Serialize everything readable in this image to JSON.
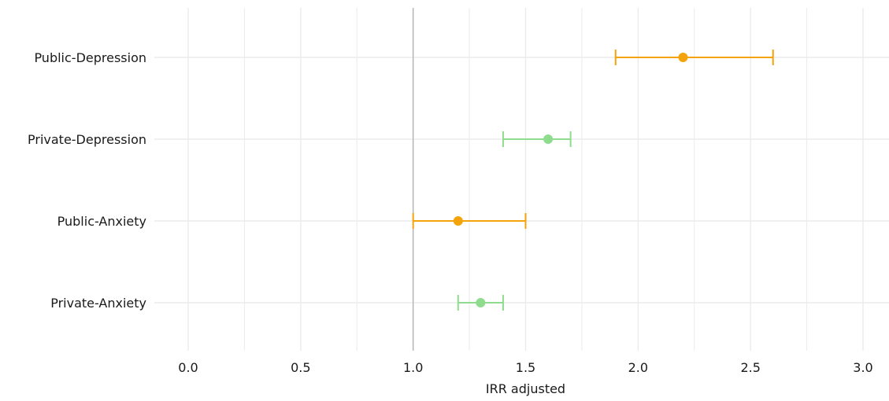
{
  "chart_data": {
    "type": "scatter",
    "subtype": "forest-plot",
    "title": "",
    "xlabel": "IRR adjusted",
    "ylabel": "",
    "xlim": [
      -0.1,
      3.1
    ],
    "xticks": [
      "0.0",
      "0.5",
      "1.0",
      "1.5",
      "2.0",
      "2.5",
      "3.0"
    ],
    "reference_line": 1.0,
    "grid": true,
    "legend": "none",
    "colors": {
      "public": "#F5A30A",
      "private": "#8FDC8F",
      "grid": "#EBEBEB",
      "reference": "#A9A9A9"
    },
    "rows": [
      {
        "label": "Public-Depression",
        "estimate": 2.2,
        "lower": 1.9,
        "upper": 2.6,
        "group": "public"
      },
      {
        "label": "Private-Depression",
        "estimate": 1.6,
        "lower": 1.4,
        "upper": 1.7,
        "group": "private"
      },
      {
        "label": "Public-Anxiety",
        "estimate": 1.2,
        "lower": 1.0,
        "upper": 1.5,
        "group": "public"
      },
      {
        "label": "Private-Anxiety",
        "estimate": 1.3,
        "lower": 1.2,
        "upper": 1.4,
        "group": "private"
      }
    ]
  }
}
